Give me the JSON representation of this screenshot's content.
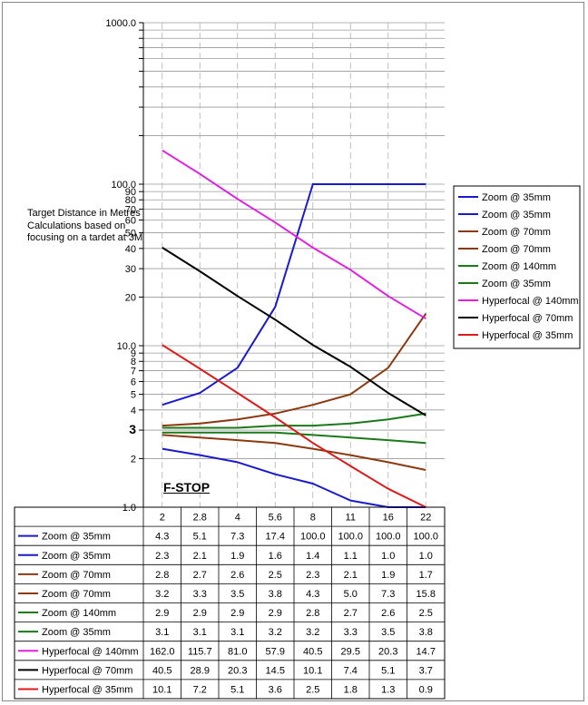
{
  "chart_data": {
    "type": "line",
    "ylabel": "Target Distance in Metres\nCalculations based on focusing on a tardet at 3M",
    "xlabel": "F-STOP",
    "yscale": "log",
    "ylim": [
      1,
      1000
    ],
    "y_tick_labels": [
      "1.0",
      "2",
      "3",
      "4",
      "5",
      "6",
      "7",
      "8",
      "9",
      "10.0",
      "20",
      "30",
      "40",
      "50",
      "60",
      "70",
      "80",
      "90",
      "100.0",
      "1000.0"
    ],
    "categories": [
      "2",
      "2.8",
      "4",
      "5.6",
      "8",
      "11",
      "16",
      "22"
    ],
    "grid": true,
    "legend_position": "right",
    "series": [
      {
        "name": "Zoom @ 35mm",
        "color": "#1a1acc",
        "values": [
          4.3,
          5.1,
          7.3,
          17.4,
          100.0,
          100.0,
          100.0,
          100.0
        ],
        "labels": [
          "4.3",
          "5.1",
          "7.3",
          "17.4",
          "100.0",
          "100.0",
          "100.0",
          "100.0"
        ]
      },
      {
        "name": "Zoom @ 35mm",
        "color": "#1a1acc",
        "values": [
          2.3,
          2.1,
          1.9,
          1.6,
          1.4,
          1.1,
          1.0,
          1.0
        ],
        "labels": [
          "2.3",
          "2.1",
          "1.9",
          "1.6",
          "1.4",
          "1.1",
          "1.0",
          "1.0"
        ]
      },
      {
        "name": "Zoom @ 70mm",
        "color": "#8b3a10",
        "values": [
          2.8,
          2.7,
          2.6,
          2.5,
          2.3,
          2.1,
          1.9,
          1.7
        ],
        "labels": [
          "2.8",
          "2.7",
          "2.6",
          "2.5",
          "2.3",
          "2.1",
          "1.9",
          "1.7"
        ]
      },
      {
        "name": "Zoom @ 70mm",
        "color": "#8b3a10",
        "values": [
          3.2,
          3.3,
          3.5,
          3.8,
          4.3,
          5.0,
          7.3,
          15.8
        ],
        "labels": [
          "3.2",
          "3.3",
          "3.5",
          "3.8",
          "4.3",
          "5.0",
          "7.3",
          "15.8"
        ]
      },
      {
        "name": "Zoom @ 140mm",
        "color": "#1a7a1a",
        "values": [
          2.9,
          2.9,
          2.9,
          2.9,
          2.8,
          2.7,
          2.6,
          2.5
        ],
        "labels": [
          "2.9",
          "2.9",
          "2.9",
          "2.9",
          "2.8",
          "2.7",
          "2.6",
          "2.5"
        ]
      },
      {
        "name": "Zoom @ 35mm",
        "color": "#1a7a1a",
        "values": [
          3.1,
          3.1,
          3.1,
          3.2,
          3.2,
          3.3,
          3.5,
          3.8
        ],
        "labels": [
          "3.1",
          "3.1",
          "3.1",
          "3.2",
          "3.2",
          "3.3",
          "3.5",
          "3.8"
        ]
      },
      {
        "name": "Hyperfocal @ 140mm",
        "color": "#e020e0",
        "values": [
          162.0,
          115.7,
          81.0,
          57.9,
          40.5,
          29.5,
          20.3,
          14.7
        ],
        "labels": [
          "162.0",
          "115.7",
          "81.0",
          "57.9",
          "40.5",
          "29.5",
          "20.3",
          "14.7"
        ]
      },
      {
        "name": "Hyperfocal @ 70mm",
        "color": "#000000",
        "values": [
          40.5,
          28.9,
          20.3,
          14.5,
          10.1,
          7.4,
          5.1,
          3.7
        ],
        "labels": [
          "40.5",
          "28.9",
          "20.3",
          "14.5",
          "10.1",
          "7.4",
          "5.1",
          "3.7"
        ]
      },
      {
        "name": "Hyperfocal @ 35mm",
        "color": "#dd1a1a",
        "values": [
          10.1,
          7.2,
          5.1,
          3.6,
          2.5,
          1.8,
          1.3,
          0.9
        ],
        "labels": [
          "10.1",
          "7.2",
          "5.1",
          "3.6",
          "2.5",
          "1.8",
          "1.3",
          "0.9"
        ]
      }
    ]
  }
}
